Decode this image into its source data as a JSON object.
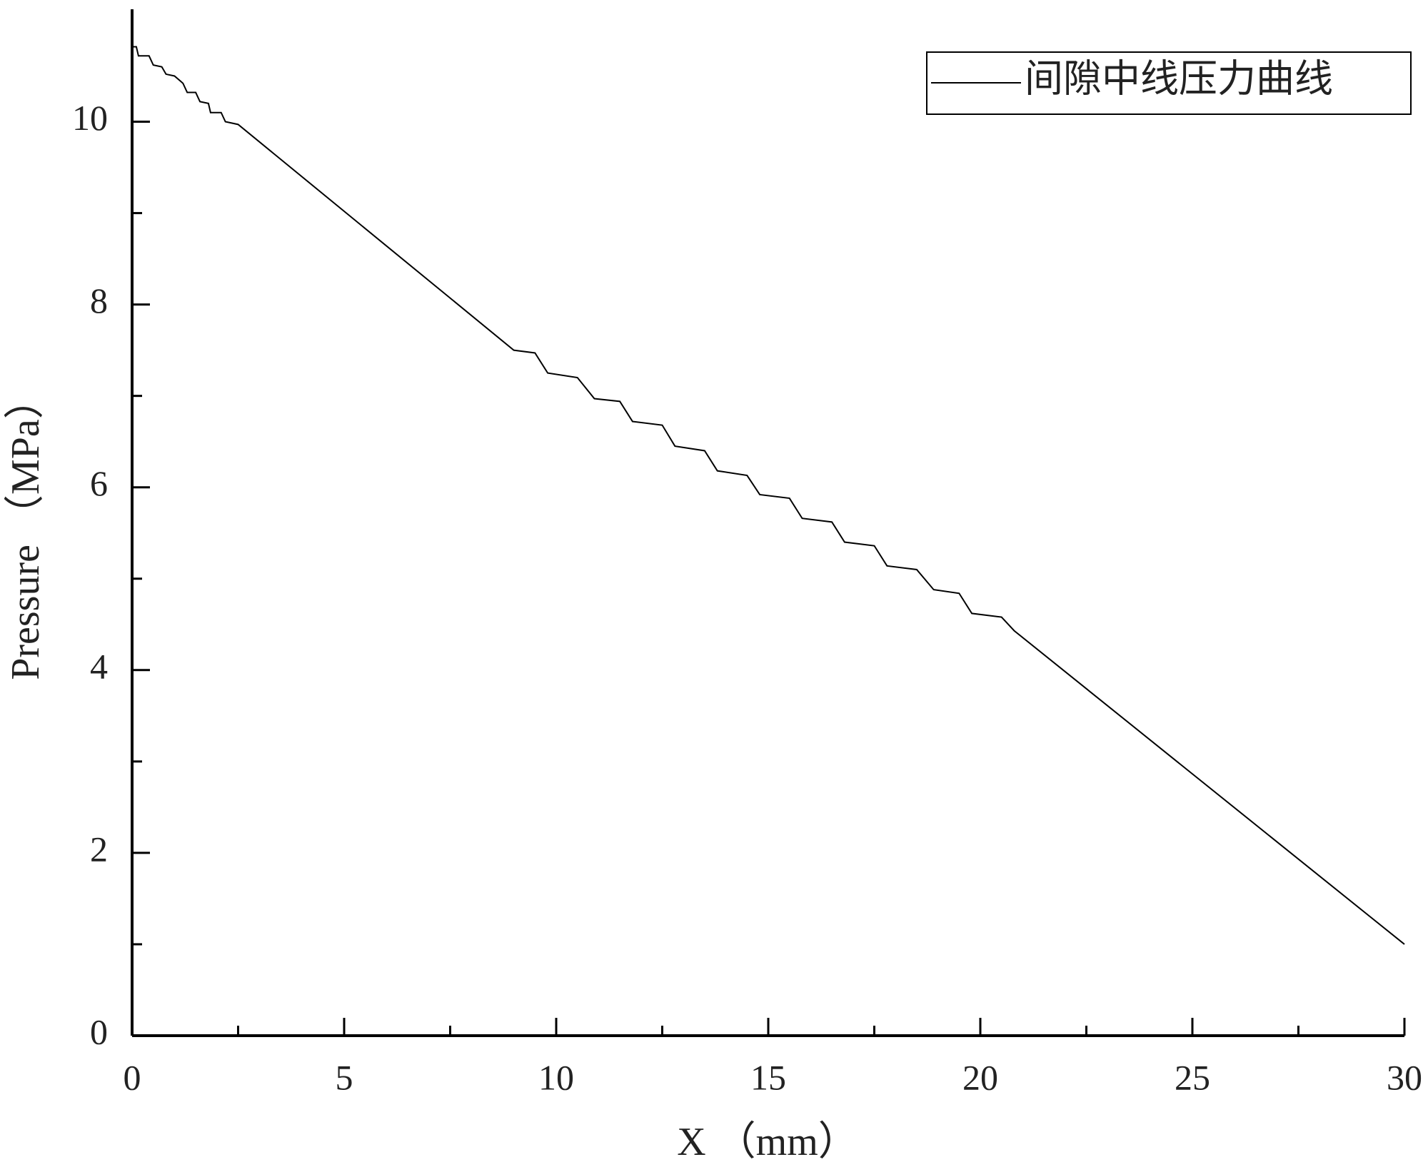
{
  "chart_data": {
    "type": "line",
    "x_label": "X （mm）",
    "y_label": "Pressure （MPa）",
    "xlim": [
      0,
      30
    ],
    "xticks": [
      0,
      5,
      10,
      15,
      20,
      25,
      30
    ],
    "ylim": [
      0,
      11.23
    ],
    "yticks": [
      0,
      2,
      4,
      6,
      8,
      10
    ],
    "legend": "top-right",
    "series": [
      {
        "name": "间隙中线压力曲线",
        "color": "#000000",
        "x": [
          0,
          0.1,
          0.15,
          0.4,
          0.5,
          0.7,
          0.8,
          1.0,
          1.2,
          1.3,
          1.5,
          1.6,
          1.8,
          1.85,
          2.1,
          2.2,
          2.5,
          9.0,
          9.5,
          9.8,
          10.5,
          10.9,
          11.5,
          11.8,
          12.5,
          12.8,
          13.5,
          13.8,
          14.5,
          14.8,
          15.5,
          15.8,
          16.5,
          16.8,
          17.5,
          17.8,
          18.5,
          18.9,
          19.5,
          19.8,
          20.5,
          20.8,
          30
        ],
        "values": [
          10.82,
          10.82,
          10.72,
          10.72,
          10.62,
          10.6,
          10.52,
          10.5,
          10.42,
          10.32,
          10.32,
          10.22,
          10.2,
          10.1,
          10.1,
          10.0,
          9.97,
          7.5,
          7.47,
          7.25,
          7.2,
          6.97,
          6.94,
          6.72,
          6.68,
          6.45,
          6.4,
          6.18,
          6.13,
          5.92,
          5.88,
          5.66,
          5.62,
          5.4,
          5.36,
          5.14,
          5.1,
          4.88,
          4.84,
          4.62,
          4.58,
          4.43,
          1.0
        ]
      }
    ]
  }
}
